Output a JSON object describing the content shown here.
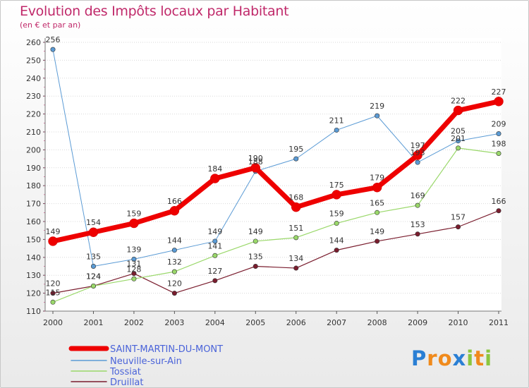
{
  "header": {
    "title": "Evolution des Impôts locaux par Habitant",
    "subtitle": "(en € et par an)"
  },
  "logo": {
    "letters": [
      "P",
      "r",
      "o",
      "x",
      "i",
      "t",
      "i"
    ],
    "colors": [
      "#2a7fd4",
      "#f08a1c",
      "#f08a1c",
      "#2a7fd4",
      "#8cc63f",
      "#f08a1c",
      "#8cc63f"
    ]
  },
  "chart_data": {
    "type": "line",
    "title": "Evolution des Impôts locaux par Habitant",
    "subtitle": "(en € et par an)",
    "xlabel": "",
    "ylabel": "",
    "x": [
      "2000",
      "2001",
      "2002",
      "2003",
      "2004",
      "2005",
      "2006",
      "2007",
      "2008",
      "2009",
      "2010",
      "2011"
    ],
    "ylim": [
      110,
      260
    ],
    "yticks": [
      110,
      120,
      130,
      140,
      150,
      160,
      170,
      180,
      190,
      200,
      210,
      220,
      230,
      240,
      250,
      260
    ],
    "grid": "horizontal-dotted",
    "legend_position": "bottom-left",
    "series": [
      {
        "name": "SAINT-MARTIN-DU-MONT",
        "color": "#ee0000",
        "values": [
          149,
          154,
          159,
          166,
          184,
          190,
          168,
          175,
          179,
          197,
          222,
          227
        ],
        "labels": [
          "149",
          "154",
          "159",
          "166",
          "184",
          "190",
          "168",
          "175",
          "179",
          "197",
          "222",
          "227"
        ]
      },
      {
        "name": "Neuville-sur-Ain",
        "color": "#5b9bd5",
        "values": [
          256,
          135,
          139,
          144,
          149,
          188,
          195,
          211,
          219,
          193,
          205,
          209
        ],
        "labels": [
          "256",
          "135",
          "139",
          "144",
          "149",
          "188",
          "195",
          "211",
          "219",
          "193",
          "205",
          "209"
        ]
      },
      {
        "name": "Tossiat",
        "color": "#9ad86a",
        "values": [
          115,
          124,
          128,
          132,
          141,
          149,
          151,
          159,
          165,
          169,
          201,
          198
        ],
        "labels": [
          "115",
          "124",
          "128",
          "132",
          "141",
          "149",
          "151",
          "159",
          "165",
          "169",
          "201",
          "198"
        ]
      },
      {
        "name": "Druillat",
        "color": "#7a1d2e",
        "values": [
          120,
          124,
          131,
          120,
          127,
          135,
          134,
          144,
          149,
          153,
          157,
          166
        ],
        "labels": [
          "120",
          "124",
          "131",
          "120",
          "127",
          "135",
          "134",
          "144",
          "149",
          "153",
          "157",
          "166"
        ]
      }
    ]
  }
}
